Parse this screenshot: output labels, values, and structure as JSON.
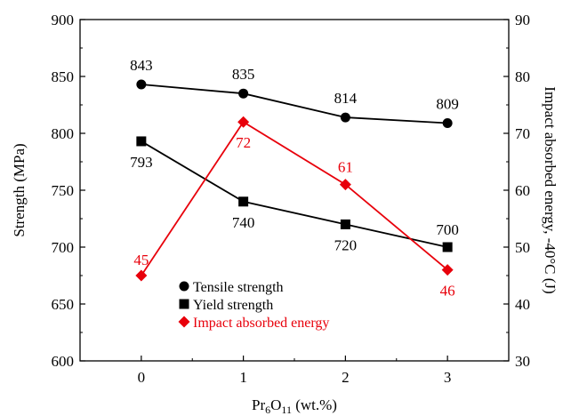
{
  "chart_data": {
    "type": "line",
    "title": "",
    "xlabel": {
      "main": "Pr",
      "sub1": "6",
      "mid": "O",
      "sub2": "11",
      "tail": " (wt.%)"
    },
    "ylabel_left": "Strength (MPa)",
    "ylabel_right": "Impact absorbed energy, -40°C (J)",
    "x": [
      0,
      1,
      2,
      3
    ],
    "x_tick_labels": [
      "0",
      "1",
      "2",
      "3"
    ],
    "xlim": [
      -0.6,
      3.6
    ],
    "ylim_left": [
      600,
      900
    ],
    "ylim_right": [
      30,
      90
    ],
    "left_ticks": [
      600,
      650,
      700,
      750,
      800,
      850,
      900
    ],
    "right_ticks": [
      30,
      40,
      50,
      60,
      70,
      80,
      90
    ],
    "grid": false,
    "legend_position": "lower-left",
    "series": [
      {
        "name": "Tensile strength",
        "axis": "left",
        "marker": "circle",
        "color": "#000000",
        "values": [
          843,
          835,
          814,
          809
        ],
        "labels": [
          "843",
          "835",
          "814",
          "809"
        ]
      },
      {
        "name": "Yield strength",
        "axis": "left",
        "marker": "square",
        "color": "#000000",
        "values": [
          793,
          740,
          720,
          700
        ],
        "labels": [
          "793",
          "740",
          "720",
          "700"
        ]
      },
      {
        "name": "Impact absorbed energy",
        "axis": "right",
        "marker": "diamond",
        "color": "#e8000b",
        "values": [
          45,
          72,
          61,
          46
        ],
        "labels": [
          "45",
          "72",
          "61",
          "46"
        ]
      }
    ]
  }
}
